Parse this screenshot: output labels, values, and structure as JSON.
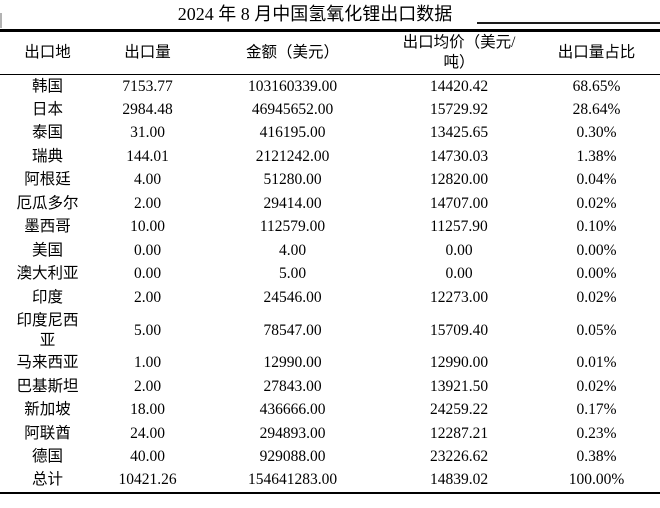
{
  "title": "2024 年 8 月中国氢氧化锂出口数据",
  "table": {
    "columns": [
      "出口地",
      "出口量",
      "金额（美元）",
      "出口均价（美元/吨）",
      "出口量占比"
    ],
    "rows": [
      [
        "韩国",
        "7153.77",
        "103160339.00",
        "14420.42",
        "68.65%"
      ],
      [
        "日本",
        "2984.48",
        "46945652.00",
        "15729.92",
        "28.64%"
      ],
      [
        "泰国",
        "31.00",
        "416195.00",
        "13425.65",
        "0.30%"
      ],
      [
        "瑞典",
        "144.01",
        "2121242.00",
        "14730.03",
        "1.38%"
      ],
      [
        "阿根廷",
        "4.00",
        "51280.00",
        "12820.00",
        "0.04%"
      ],
      [
        "厄瓜多尔",
        "2.00",
        "29414.00",
        "14707.00",
        "0.02%"
      ],
      [
        "墨西哥",
        "10.00",
        "112579.00",
        "11257.90",
        "0.10%"
      ],
      [
        "美国",
        "0.00",
        "4.00",
        "0.00",
        "0.00%"
      ],
      [
        "澳大利亚",
        "0.00",
        "5.00",
        "0.00",
        "0.00%"
      ],
      [
        "印度",
        "2.00",
        "24546.00",
        "12273.00",
        "0.02%"
      ],
      [
        "印度尼西亚",
        "5.00",
        "78547.00",
        "15709.40",
        "0.05%"
      ],
      [
        "马来西亚",
        "1.00",
        "12990.00",
        "12990.00",
        "0.01%"
      ],
      [
        "巴基斯坦",
        "2.00",
        "27843.00",
        "13921.50",
        "0.02%"
      ],
      [
        "新加坡",
        "18.00",
        "436666.00",
        "24259.22",
        "0.17%"
      ],
      [
        "阿联酋",
        "24.00",
        "294893.00",
        "12287.21",
        "0.23%"
      ],
      [
        "德国",
        "40.00",
        "929088.00",
        "23226.62",
        "0.38%"
      ]
    ],
    "total_row": [
      "总计",
      "10421.26",
      "154641283.00",
      "14839.02",
      "100.00%"
    ]
  },
  "colors": {
    "background": "#ffffff",
    "text": "#000000",
    "rule": "#000000"
  }
}
